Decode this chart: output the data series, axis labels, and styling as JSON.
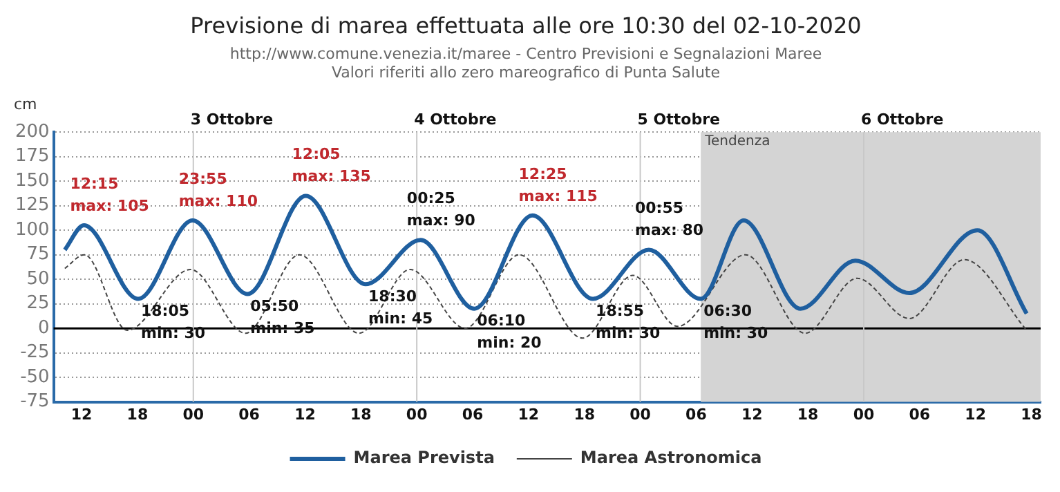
{
  "chart_data": {
    "type": "line",
    "title": "Previsione di marea effettuata alle ore 10:30 del 02-10-2020",
    "subtitle": "http://www.comune.venezia.it/maree - Centro Previsioni e Segnalazioni Maree\nValori riferiti allo zero mareografico di Punta Salute",
    "ylabel": "cm",
    "series": [
      {
        "name": "Marea Prevista",
        "color": "#1f5f9f",
        "line_style": "solid",
        "x": [
          10.2,
          12.25,
          18.08,
          23.92,
          29.83,
          36.08,
          42.5,
          48.42,
          54.17,
          60.42,
          66.92,
          72.92,
          78.5,
          83.1,
          89.2,
          95.1,
          100.9,
          108.2,
          113.5
        ],
        "values": [
          80,
          105,
          30,
          110,
          35,
          135,
          45,
          90,
          20,
          115,
          30,
          80,
          30,
          110,
          20,
          69,
          36,
          100,
          15
        ]
      },
      {
        "name": "Marea Astronomica",
        "color": "#444444",
        "line_style": "dashed",
        "x": [
          10.2,
          12.3,
          16.9,
          23.7,
          29.6,
          35.4,
          41.8,
          47.3,
          53.2,
          59.0,
          65.8,
          71.2,
          76.0,
          83.3,
          89.7,
          95.3,
          100.9,
          106.8,
          113.5
        ],
        "values": [
          61,
          75,
          -2,
          60,
          -5,
          75,
          -5,
          60,
          0,
          75,
          -10,
          54,
          2,
          75,
          -5,
          51,
          10,
          70,
          -2
        ]
      }
    ],
    "xlim": [
      9,
      115
    ],
    "xticks": [
      12,
      18,
      {
        "value": 24,
        "label": "00"
      },
      {
        "value": 30,
        "label": "06"
      },
      {
        "value": 36,
        "label": "12"
      },
      {
        "value": 42,
        "label": "18"
      },
      {
        "value": 48,
        "label": "00"
      },
      {
        "value": 54,
        "label": "06"
      },
      {
        "value": 60,
        "label": "12"
      },
      {
        "value": 66,
        "label": "18"
      },
      {
        "value": 72,
        "label": "00"
      },
      {
        "value": 78,
        "label": "06"
      },
      {
        "value": 84,
        "label": "12"
      },
      {
        "value": 90,
        "label": "18"
      },
      {
        "value": 96,
        "label": "00"
      },
      {
        "value": 102,
        "label": "06"
      },
      {
        "value": 108,
        "label": "12"
      },
      {
        "value": 114,
        "label": "18"
      }
    ],
    "ylim": [
      -75,
      200
    ],
    "yticks": [
      -75,
      -50,
      -25,
      0,
      25,
      50,
      75,
      100,
      125,
      150,
      175,
      200
    ],
    "grid": "y",
    "legend": "bottom",
    "marker": "none",
    "ref_lines": [
      {
        "axis": "y",
        "value": 0,
        "color": "#000000"
      },
      {
        "axis": "x",
        "value": 24,
        "label": "3 Ottobre",
        "color": "#c8c8c8"
      },
      {
        "axis": "x",
        "value": 48,
        "label": "4 Ottobre",
        "color": "#c8c8c8"
      },
      {
        "axis": "x",
        "value": 72,
        "label": "5 Ottobre",
        "color": "#c8c8c8"
      },
      {
        "axis": "x",
        "value": 96,
        "label": "6 Ottobre",
        "color": "#c8c8c8"
      }
    ],
    "bands": [
      {
        "axis": "x",
        "from": 78.5,
        "to": 115,
        "label": "Tendenza",
        "color": "#d4d4d4"
      }
    ],
    "annotations": [
      {
        "text": "12:15\nmax: 105",
        "x": 12.25,
        "y": 105
      },
      {
        "text": "18:05\nmin: 30",
        "x": 18.08,
        "y": 30
      },
      {
        "text": "23:55\nmax: 110",
        "x": 23.92,
        "y": 110
      },
      {
        "text": "05:50\nmin: 35",
        "x": 29.83,
        "y": 35
      },
      {
        "text": "12:05\nmax: 135",
        "x": 36.08,
        "y": 135
      },
      {
        "text": "18:30\nmin: 45",
        "x": 42.5,
        "y": 45
      },
      {
        "text": "00:25\nmax: 90",
        "x": 48.42,
        "y": 90
      },
      {
        "text": "06:10\nmin: 20",
        "x": 54.17,
        "y": 20
      },
      {
        "text": "12:25\nmax: 115",
        "x": 60.42,
        "y": 115
      },
      {
        "text": "18:55\nmin: 30",
        "x": 66.92,
        "y": 30
      },
      {
        "text": "00:55\nmax: 80",
        "x": 72.92,
        "y": 80
      },
      {
        "text": "06:30\nmin: 30",
        "x": 78.5,
        "y": 30
      }
    ]
  }
}
